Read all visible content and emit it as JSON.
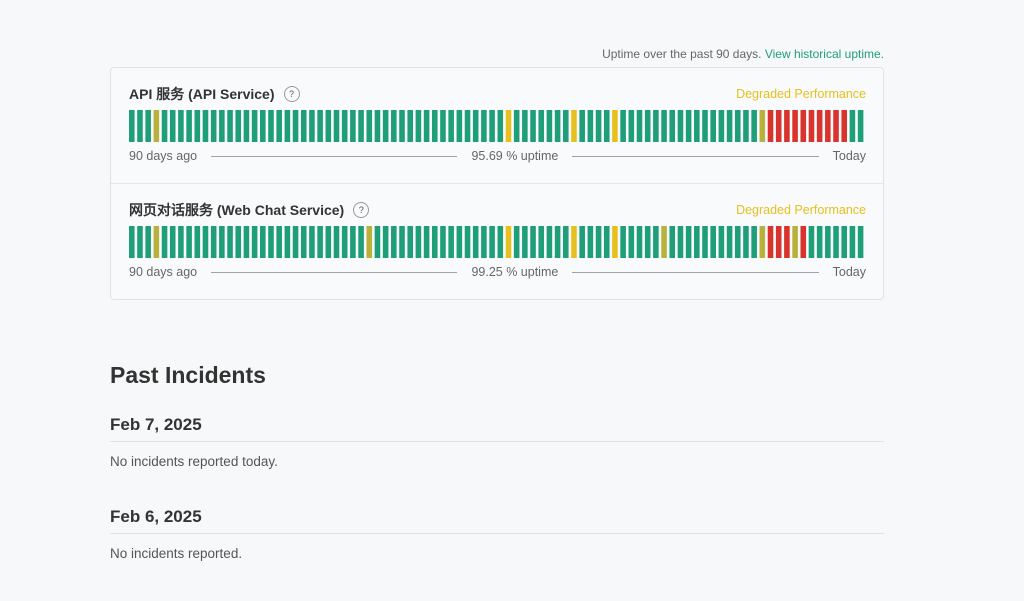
{
  "header": {
    "uptime_note": "Uptime over the past 90 days.",
    "history_link": "View historical uptime."
  },
  "components": [
    {
      "name": "API 服务 (API Service)",
      "help": "?",
      "status": "Degraded Performance",
      "start": "90 days ago",
      "uptime": "95.69 % uptime",
      "end": "Today",
      "bars": [
        "#1f9e7a",
        "#1f9e7a",
        "#1f9e7a",
        "#b8b23c",
        "#1f9e7a",
        "#1f9e7a",
        "#1f9e7a",
        "#1f9e7a",
        "#1f9e7a",
        "#1f9e7a",
        "#1f9e7a",
        "#1f9e7a",
        "#1f9e7a",
        "#1f9e7a",
        "#1f9e7a",
        "#1f9e7a",
        "#1f9e7a",
        "#1f9e7a",
        "#1f9e7a",
        "#1f9e7a",
        "#1f9e7a",
        "#1f9e7a",
        "#1f9e7a",
        "#1f9e7a",
        "#1f9e7a",
        "#1f9e7a",
        "#1f9e7a",
        "#1f9e7a",
        "#1f9e7a",
        "#1f9e7a",
        "#1f9e7a",
        "#1f9e7a",
        "#1f9e7a",
        "#1f9e7a",
        "#1f9e7a",
        "#1f9e7a",
        "#1f9e7a",
        "#1f9e7a",
        "#1f9e7a",
        "#1f9e7a",
        "#1f9e7a",
        "#1f9e7a",
        "#1f9e7a",
        "#1f9e7a",
        "#1f9e7a",
        "#1f9e7a",
        "#e6c01e",
        "#1f9e7a",
        "#1f9e7a",
        "#1f9e7a",
        "#1f9e7a",
        "#1f9e7a",
        "#1f9e7a",
        "#1f9e7a",
        "#e6c01e",
        "#1f9e7a",
        "#1f9e7a",
        "#1f9e7a",
        "#1f9e7a",
        "#e6c01e",
        "#1f9e7a",
        "#1f9e7a",
        "#1f9e7a",
        "#1f9e7a",
        "#1f9e7a",
        "#1f9e7a",
        "#1f9e7a",
        "#1f9e7a",
        "#1f9e7a",
        "#1f9e7a",
        "#1f9e7a",
        "#1f9e7a",
        "#1f9e7a",
        "#1f9e7a",
        "#1f9e7a",
        "#1f9e7a",
        "#1f9e7a",
        "#b8b23c",
        "#d8332c",
        "#d8332c",
        "#d8332c",
        "#d8332c",
        "#d8332c",
        "#d8332c",
        "#d8332c",
        "#d8332c",
        "#d8332c",
        "#d8332c",
        "#1f9e7a",
        "#1f9e7a"
      ]
    },
    {
      "name": "网页对话服务 (Web Chat Service)",
      "help": "?",
      "status": "Degraded Performance",
      "start": "90 days ago",
      "uptime": "99.25 % uptime",
      "end": "Today",
      "bars": [
        "#1f9e7a",
        "#1f9e7a",
        "#1f9e7a",
        "#b8b23c",
        "#1f9e7a",
        "#1f9e7a",
        "#1f9e7a",
        "#1f9e7a",
        "#1f9e7a",
        "#1f9e7a",
        "#1f9e7a",
        "#1f9e7a",
        "#1f9e7a",
        "#1f9e7a",
        "#1f9e7a",
        "#1f9e7a",
        "#1f9e7a",
        "#1f9e7a",
        "#1f9e7a",
        "#1f9e7a",
        "#1f9e7a",
        "#1f9e7a",
        "#1f9e7a",
        "#1f9e7a",
        "#1f9e7a",
        "#1f9e7a",
        "#1f9e7a",
        "#1f9e7a",
        "#1f9e7a",
        "#b8b23c",
        "#1f9e7a",
        "#1f9e7a",
        "#1f9e7a",
        "#1f9e7a",
        "#1f9e7a",
        "#1f9e7a",
        "#1f9e7a",
        "#1f9e7a",
        "#1f9e7a",
        "#1f9e7a",
        "#1f9e7a",
        "#1f9e7a",
        "#1f9e7a",
        "#1f9e7a",
        "#1f9e7a",
        "#1f9e7a",
        "#e6c01e",
        "#1f9e7a",
        "#1f9e7a",
        "#1f9e7a",
        "#1f9e7a",
        "#1f9e7a",
        "#1f9e7a",
        "#1f9e7a",
        "#e6c01e",
        "#1f9e7a",
        "#1f9e7a",
        "#1f9e7a",
        "#1f9e7a",
        "#e6c01e",
        "#1f9e7a",
        "#1f9e7a",
        "#1f9e7a",
        "#1f9e7a",
        "#1f9e7a",
        "#b8b23c",
        "#1f9e7a",
        "#1f9e7a",
        "#1f9e7a",
        "#1f9e7a",
        "#1f9e7a",
        "#1f9e7a",
        "#1f9e7a",
        "#1f9e7a",
        "#1f9e7a",
        "#1f9e7a",
        "#1f9e7a",
        "#b8b23c",
        "#d8332c",
        "#d8332c",
        "#d8332c",
        "#b8b23c",
        "#d8332c",
        "#1f9e7a",
        "#1f9e7a",
        "#1f9e7a",
        "#1f9e7a",
        "#1f9e7a",
        "#1f9e7a",
        "#1f9e7a"
      ]
    }
  ],
  "incidents": {
    "title": "Past Incidents",
    "days": [
      {
        "date": "Feb 7, 2025",
        "text": "No incidents reported today."
      },
      {
        "date": "Feb 6, 2025",
        "text": "No incidents reported."
      }
    ]
  }
}
